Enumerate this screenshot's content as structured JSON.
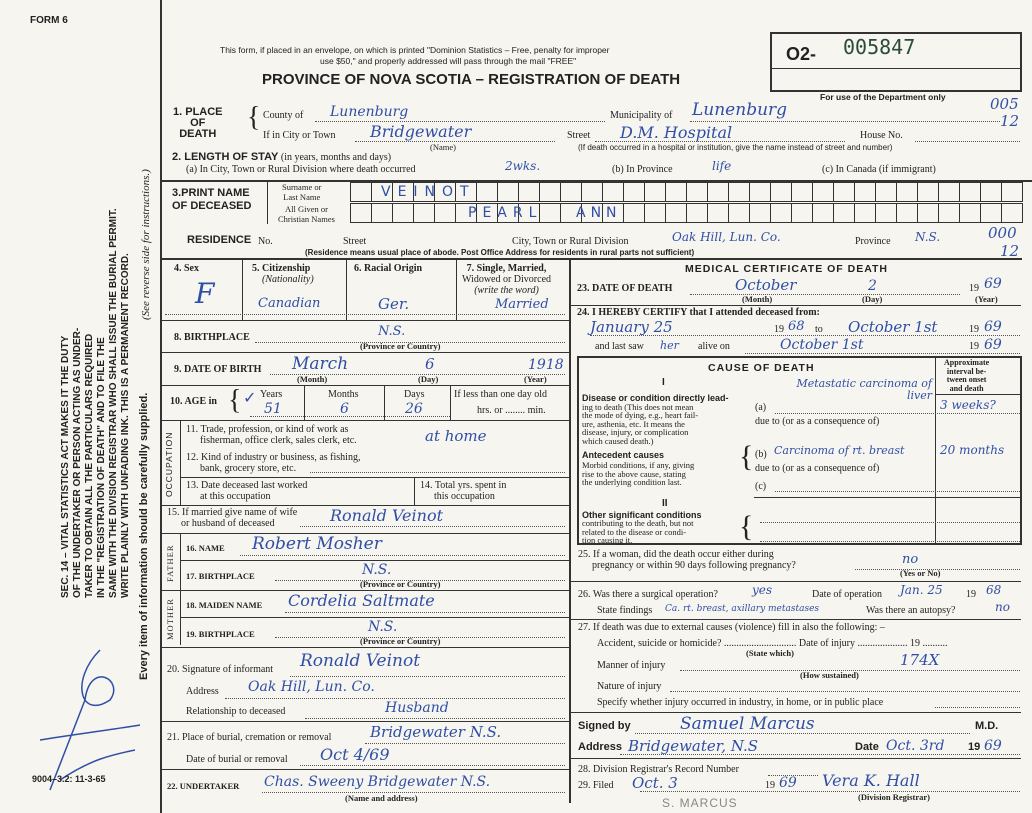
{
  "margin": {
    "form_label": "FORM 6",
    "act_lines": [
      "SEC. 14 – VITAL STATISTICS ACT MAKES IT THE DUTY",
      "OF THE UNDERTAKER OR PERSON ACTING AS UNDER-",
      "TAKER TO OBTAIN ALL THE PARTICULARS REQUIRED",
      "IN THE \"REGISTRATION OF DEATH\" AND TO FILE THE",
      "SAME WITH THE DIVISION REGISTRAR WHO SHALL ISSUE THE BURIAL PERMIT.",
      "WRITE PLAINLY WITH UNFADING INK. THIS IS A PERMANENT RECORD."
    ],
    "every_item": "Every item of information should be carefully supplied.",
    "see_reverse": "(See reverse side for instructions.)",
    "print_code": "9004–3.2: 11-3-65"
  },
  "header": {
    "notice_1": "This form, if placed in an envelope, on which is printed \"Dominion Statistics – Free, penalty for improper",
    "notice_2": "use $50,\" and properly addressed will pass through the mail \"FREE\"",
    "title": "PROVINCE OF NOVA SCOTIA – REGISTRATION OF DEATH",
    "serial_prefix": "O2-",
    "serial": "005847",
    "dept_only": "For use of the Department only",
    "code_1": "005",
    "code_1b": "12",
    "code_2": "000",
    "code_2b": "12"
  },
  "s1": {
    "label_1": "1. PLACE",
    "label_2": "OF",
    "label_3": "DEATH",
    "county_label": "County of",
    "county": "Lunenburg",
    "municipality_label": "Municipality of",
    "municipality": "Lunenburg",
    "city_label": "If in City or Town",
    "city": "Bridgewater",
    "name_hint": "(Name)",
    "street_label": "Street",
    "street": "D.M. Hospital",
    "house_label": "House No.",
    "hospital_hint": "(If death occurred in a hospital or institution, give the name instead of street and number)"
  },
  "s2": {
    "label": "2. LENGTH OF STAY",
    "hint": "(in years, months and days)",
    "a_label": "(a) In City, Town or Rural Division where death occurred",
    "a": "2wks.",
    "b_label": "(b) In Province",
    "b": "life",
    "c_label": "(c) In Canada (if immigrant)"
  },
  "s3": {
    "label_1": "3.PRINT NAME",
    "label_2": "OF DECEASED",
    "surname_label_1": "Surname or",
    "surname_label_2": "Last Name",
    "given_label_1": "All Given or",
    "given_label_2": "Christian Names",
    "surname": "VEINOT",
    "given_1": "PEARL",
    "given_2": "ANN"
  },
  "residence": {
    "label": "RESIDENCE",
    "no_label": "No.",
    "street_label": "Street",
    "city_label": "City, Town or Rural Division",
    "city": "Oak Hill, Lun. Co.",
    "province_label": "Province",
    "province": "N.S.",
    "hint": "(Residence means usual place of abode. Post Office Address for residents in rural parts not sufficient)"
  },
  "left": {
    "sex_label": "4. Sex",
    "sex": "F",
    "citizenship_label": "5. Citizenship",
    "citizenship_sub": "(Nationality)",
    "citizenship": "Canadian",
    "racial_label": "6. Racial Origin",
    "racial": "Ger.",
    "marital_label_1": "7. Single, Married,",
    "marital_label_2": "Widowed or Divorced",
    "marital_label_3": "(write the word)",
    "marital": "Married",
    "birthplace_label": "8. BIRTHPLACE",
    "birthplace": "N.S.",
    "prov_hint": "(Province or Country)",
    "dob_label": "9. DATE OF BIRTH",
    "dob_month": "March",
    "dob_day": "6",
    "dob_year": "1918",
    "month_hint": "(Month)",
    "day_hint": "(Day)",
    "year_hint": "(Year)",
    "age_label": "10. AGE in",
    "years_label": "Years",
    "months_label": "Months",
    "days_label": "Days",
    "years": "51",
    "months": "6",
    "days": "26",
    "less_label": "If less than one day old",
    "hrs_label": "hrs. or",
    "min_label": "min.",
    "occupation_label": "OCCUPATION",
    "q11_1": "11. Trade, profession, or kind of work as",
    "q11_2": "fisherman, office clerk, sales clerk, etc.",
    "q11": "at home",
    "q12_1": "12. Kind of industry or business, as fishing,",
    "q12_2": "bank, grocery store, etc.",
    "q13_1": "13. Date deceased last worked",
    "q13_2": "at this occupation",
    "q14_1": "14. Total yrs. spent in",
    "q14_2": "this occupation",
    "q15_1": "15. If married give name of wife",
    "q15_2": "or husband of deceased",
    "spouse": "Ronald Veinot",
    "father_label": "FATHER",
    "q16_label": "16. NAME",
    "father_name": "Robert Mosher",
    "q17_label": "17. BIRTHPLACE",
    "father_birthplace": "N.S.",
    "mother_label": "MOTHER",
    "q18_label": "18. MAIDEN NAME",
    "mother_name": "Cordelia Saltmate",
    "q19_label": "19. BIRTHPLACE",
    "mother_birthplace": "N.S.",
    "q20_label": "20. Signature of informant",
    "informant": "Ronald Veinot",
    "address_label": "Address",
    "address": "Oak Hill, Lun. Co.",
    "relationship_label": "Relationship to deceased",
    "relationship": "Husband",
    "q21_label": "21. Place of burial, cremation or removal",
    "burial_place": "Bridgewater N.S.",
    "burial_date_label": "Date of burial or removal",
    "burial_date": "Oct 4/69",
    "q22_label": "22. UNDERTAKER",
    "undertaker": "Chas. Sweeny Bridgewater N.S.",
    "undertaker_hint": "(Name and address)"
  },
  "right": {
    "medical_title": "MEDICAL CERTIFICATE OF DEATH",
    "q23_label": "23. DATE OF DEATH",
    "death_month": "October",
    "death_day": "2",
    "century": "19",
    "death_year": "69",
    "q24_label": "24. I HEREBY CERTIFY that I attended deceased from:",
    "from": "January 25",
    "from_year": "68",
    "to_label": "to",
    "to": "October 1st",
    "to_year": "69",
    "last_saw_label": "and last saw",
    "last_saw_pronoun": "her",
    "alive_label": "alive on",
    "last_saw": "October 1st",
    "last_saw_year": "69",
    "cause_title": "CAUSE OF DEATH",
    "interval_label": [
      "Approximate",
      "interval be-",
      "tween onset",
      "and death"
    ],
    "part_1": "I",
    "part_2": "II",
    "direct_label": "Disease or condition directly lead-",
    "direct_text": [
      "ing to death (This does not mean",
      "the mode of dying, e.g., heart fail-",
      "ure, asthenia, etc. It means the",
      "disease, injury, or complication",
      "which caused death.)"
    ],
    "antecedent_label": "Antecedent causes",
    "antecedent_text": [
      "Morbid conditions, if any, giving",
      "rise to the above cause, stating",
      "the underlying condition last."
    ],
    "other_label": "Other significant conditions",
    "other_text": [
      "contributing to the death, but not",
      "related to the disease or condi-",
      "tion causing it."
    ],
    "a_label": "(a)",
    "due_to": "due to (or as a consequence of)",
    "b_label": "(b)",
    "c_label": "(c)",
    "cause_a": "Metastatic carcinoma of liver",
    "interval_a": "3 weeks?",
    "cause_b": "Carcinoma of rt. breast",
    "interval_b": "20 months",
    "q25_1": "25. If a woman, did the death occur either during",
    "q25_2": "pregnancy or within 90 days following pregnancy?",
    "q25": "no",
    "yes_no_hint": "(Yes or No)",
    "q26_label": "26. Was there a surgical operation?",
    "q26": "yes",
    "op_date_label": "Date of operation",
    "op_date": "Jan. 25",
    "op_year": "68",
    "findings_label": "State findings",
    "findings": "Ca. rt. breast, axillary metastases",
    "autopsy_label": "Was there an autopsy?",
    "autopsy": "no",
    "q27_label": "27. If death was due to external causes (violence) fill in also the following: –",
    "accident_label": "Accident, suicide or homicide?",
    "state_which": "(State which)",
    "injury_date_label": "Date of injury",
    "manner_label": "Manner of injury",
    "manner_code": "174X",
    "how_sustained": "(How sustained)",
    "nature_label": "Nature of injury",
    "specify_label": "Specify whether injury occurred in industry, in home, or in public place",
    "signed_label": "Signed by",
    "signed": "Samuel Marcus",
    "md": "M.D.",
    "address_label": "Address",
    "address": "Bridgewater, N.S",
    "date_label": "Date",
    "date": "Oct. 3rd",
    "year": "69",
    "q28_label": "28. Division Registrar's Record Number",
    "q29_label": "29. Filed",
    "filed": "Oct. 3",
    "filed_year": "69",
    "registrar": "Vera K. Hall",
    "registrar_hint": "(Division Registrar)",
    "stamp": "S. MARCUS"
  }
}
